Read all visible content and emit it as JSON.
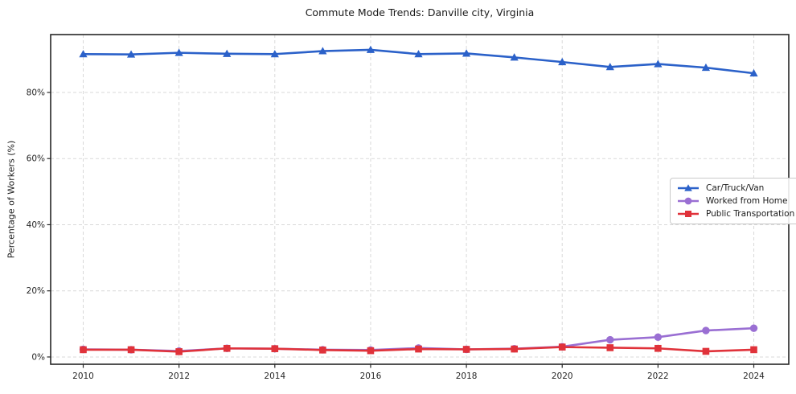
{
  "title": "Commute Mode Trends: Danville city, Virginia",
  "chart_data": {
    "type": "line",
    "title": "Commute Mode Trends: Danville city, Virginia",
    "xlabel": "",
    "ylabel": "Percentage of Workers (%)",
    "x": [
      2010,
      2011,
      2012,
      2013,
      2014,
      2015,
      2016,
      2017,
      2018,
      2019,
      2020,
      2021,
      2022,
      2023,
      2024
    ],
    "series": [
      {
        "name": "Car/Truck/Van",
        "color": "#2b61c9",
        "marker": "triangle",
        "values": [
          91.6,
          91.5,
          92.0,
          91.7,
          91.6,
          92.5,
          92.9,
          91.6,
          91.8,
          90.6,
          89.2,
          87.7,
          88.6,
          87.5,
          85.8
        ]
      },
      {
        "name": "Worked from Home",
        "color": "#9a6fd3",
        "marker": "circle",
        "values": [
          2.3,
          2.2,
          1.8,
          2.6,
          2.5,
          2.2,
          2.1,
          2.7,
          2.3,
          2.5,
          3.1,
          5.2,
          6.0,
          8.0,
          8.7
        ]
      },
      {
        "name": "Public Transportation",
        "color": "#e0323a",
        "marker": "square",
        "values": [
          2.2,
          2.2,
          1.6,
          2.6,
          2.5,
          2.1,
          1.9,
          2.4,
          2.3,
          2.4,
          3.0,
          2.8,
          2.6,
          1.7,
          2.2
        ]
      }
    ],
    "xticks": [
      2010,
      2012,
      2014,
      2016,
      2018,
      2020,
      2022,
      2024
    ],
    "xtick_labels": [
      "2010",
      "2012",
      "2014",
      "2016",
      "2018",
      "2020",
      "2022",
      "2024"
    ],
    "yticks": [
      0,
      20,
      40,
      60,
      80
    ],
    "ytick_labels": [
      "0%",
      "20%",
      "40%",
      "60%",
      "80%"
    ],
    "xlim": [
      2009.32,
      2024.73
    ],
    "ylim": [
      -2.2,
      97.5
    ],
    "grid": true,
    "grid_style": "dashed",
    "grid_color": "#d9d9d9",
    "spine_color": "#262626",
    "background_color": "#ffffff",
    "legend_position": "center-right"
  }
}
